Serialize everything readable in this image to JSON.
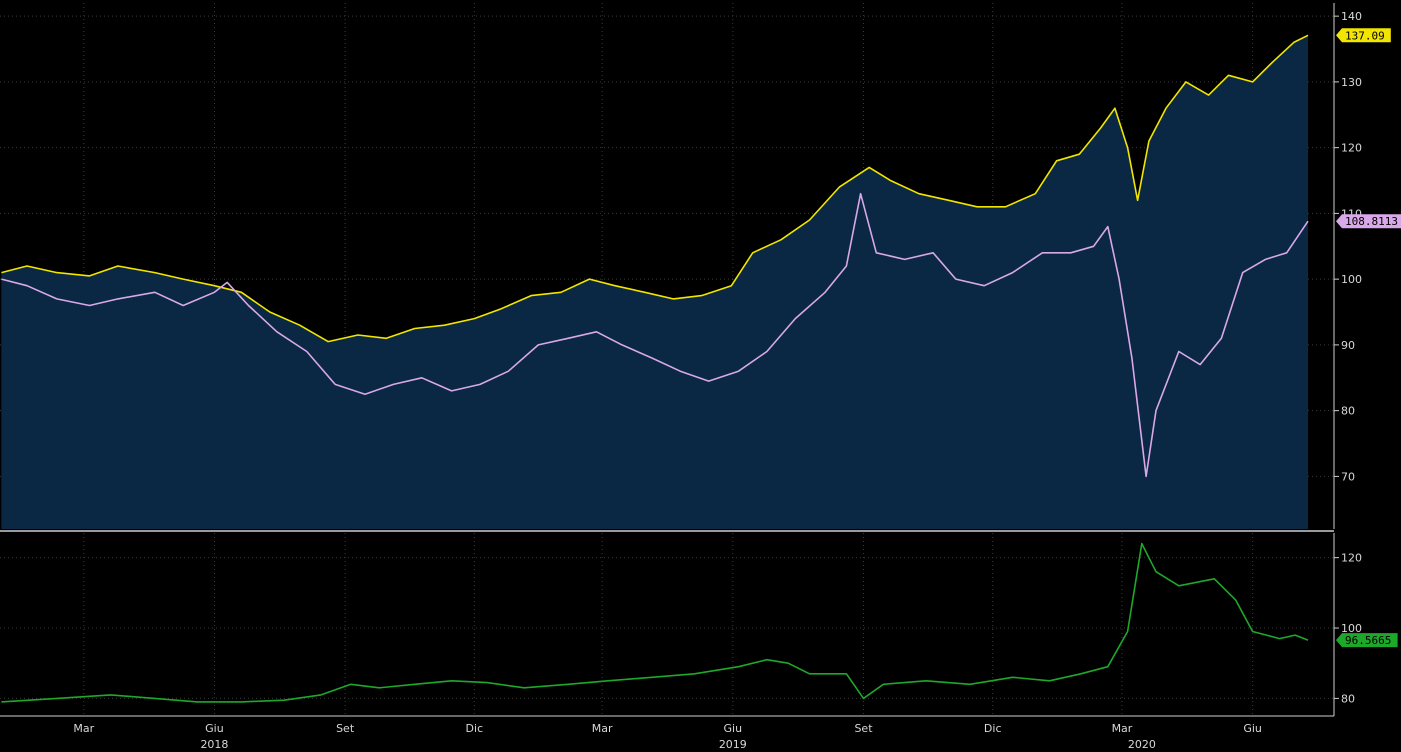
{
  "chart_data": [
    {
      "type": "area",
      "panel": "top",
      "y_axis_side": "right",
      "ylim": [
        62,
        142
      ],
      "y_ticks": [
        70,
        80,
        90,
        100,
        110,
        120,
        130,
        140
      ],
      "grid": true,
      "area_fill_color": "#0a2744",
      "series": [
        {
          "color": "#f2e600",
          "last_value_label": "137.09",
          "points": [
            [
              "2018-01-02",
              101
            ],
            [
              "2018-01-20",
              102
            ],
            [
              "2018-02-10",
              101
            ],
            [
              "2018-03-05",
              100.5
            ],
            [
              "2018-03-25",
              102
            ],
            [
              "2018-04-20",
              101
            ],
            [
              "2018-05-10",
              100
            ],
            [
              "2018-06-01",
              99
            ],
            [
              "2018-06-20",
              98
            ],
            [
              "2018-07-10",
              95
            ],
            [
              "2018-07-31",
              93
            ],
            [
              "2018-08-20",
              90.5
            ],
            [
              "2018-09-10",
              91.5
            ],
            [
              "2018-09-30",
              91
            ],
            [
              "2018-10-20",
              92.5
            ],
            [
              "2018-11-10",
              93
            ],
            [
              "2018-12-01",
              94
            ],
            [
              "2018-12-20",
              95.5
            ],
            [
              "2019-01-10",
              97.5
            ],
            [
              "2019-01-31",
              98
            ],
            [
              "2019-02-20",
              100
            ],
            [
              "2019-03-10",
              99
            ],
            [
              "2019-03-31",
              98
            ],
            [
              "2019-04-20",
              97
            ],
            [
              "2019-05-10",
              97.5
            ],
            [
              "2019-05-31",
              99
            ],
            [
              "2019-06-15",
              104
            ],
            [
              "2019-07-05",
              106
            ],
            [
              "2019-07-25",
              109
            ],
            [
              "2019-08-15",
              114
            ],
            [
              "2019-09-05",
              117
            ],
            [
              "2019-09-20",
              115
            ],
            [
              "2019-10-10",
              113
            ],
            [
              "2019-10-31",
              112
            ],
            [
              "2019-11-20",
              111
            ],
            [
              "2019-12-10",
              111
            ],
            [
              "2019-12-31",
              113
            ],
            [
              "2020-01-15",
              118
            ],
            [
              "2020-01-31",
              119
            ],
            [
              "2020-02-15",
              123
            ],
            [
              "2020-02-25",
              126
            ],
            [
              "2020-03-05",
              120
            ],
            [
              "2020-03-12",
              112
            ],
            [
              "2020-03-20",
              121
            ],
            [
              "2020-04-01",
              126
            ],
            [
              "2020-04-15",
              130
            ],
            [
              "2020-05-01",
              128
            ],
            [
              "2020-05-15",
              131
            ],
            [
              "2020-06-01",
              130
            ],
            [
              "2020-06-15",
              133
            ],
            [
              "2020-06-30",
              136
            ],
            [
              "2020-07-10",
              137.09
            ]
          ]
        },
        {
          "color": "#d9a8e8",
          "last_value_label": "108.8113",
          "points": [
            [
              "2018-01-02",
              100
            ],
            [
              "2018-01-20",
              99
            ],
            [
              "2018-02-10",
              97
            ],
            [
              "2018-03-05",
              96
            ],
            [
              "2018-03-25",
              97
            ],
            [
              "2018-04-20",
              98
            ],
            [
              "2018-05-10",
              96
            ],
            [
              "2018-06-01",
              98
            ],
            [
              "2018-06-10",
              99.5
            ],
            [
              "2018-06-25",
              96
            ],
            [
              "2018-07-15",
              92
            ],
            [
              "2018-08-05",
              89
            ],
            [
              "2018-08-25",
              84
            ],
            [
              "2018-09-15",
              82.5
            ],
            [
              "2018-10-05",
              84
            ],
            [
              "2018-10-25",
              85
            ],
            [
              "2018-11-15",
              83
            ],
            [
              "2018-12-05",
              84
            ],
            [
              "2018-12-25",
              86
            ],
            [
              "2019-01-15",
              90
            ],
            [
              "2019-02-05",
              91
            ],
            [
              "2019-02-25",
              92
            ],
            [
              "2019-03-15",
              90
            ],
            [
              "2019-04-05",
              88
            ],
            [
              "2019-04-25",
              86
            ],
            [
              "2019-05-15",
              84.5
            ],
            [
              "2019-06-05",
              86
            ],
            [
              "2019-06-25",
              89
            ],
            [
              "2019-07-15",
              94
            ],
            [
              "2019-08-05",
              98
            ],
            [
              "2019-08-20",
              102
            ],
            [
              "2019-08-30",
              113
            ],
            [
              "2019-09-10",
              104
            ],
            [
              "2019-09-30",
              103
            ],
            [
              "2019-10-20",
              104
            ],
            [
              "2019-11-05",
              100
            ],
            [
              "2019-11-25",
              99
            ],
            [
              "2019-12-15",
              101
            ],
            [
              "2020-01-05",
              104
            ],
            [
              "2020-01-25",
              104
            ],
            [
              "2020-02-10",
              105
            ],
            [
              "2020-02-20",
              108
            ],
            [
              "2020-02-28",
              100
            ],
            [
              "2020-03-08",
              88
            ],
            [
              "2020-03-18",
              70
            ],
            [
              "2020-03-25",
              80
            ],
            [
              "2020-04-10",
              89
            ],
            [
              "2020-04-25",
              87
            ],
            [
              "2020-05-10",
              91
            ],
            [
              "2020-05-25",
              101
            ],
            [
              "2020-06-10",
              103
            ],
            [
              "2020-06-25",
              104
            ],
            [
              "2020-07-10",
              108.81
            ]
          ]
        }
      ]
    },
    {
      "type": "line",
      "panel": "bottom",
      "y_axis_side": "right",
      "ylim": [
        75,
        127
      ],
      "y_ticks": [
        80,
        100,
        120
      ],
      "grid": true,
      "series": [
        {
          "color": "#1ea82a",
          "last_value_label": "96.5665",
          "points": [
            [
              "2018-01-02",
              79
            ],
            [
              "2018-02-10",
              80
            ],
            [
              "2018-03-20",
              81
            ],
            [
              "2018-04-20",
              80
            ],
            [
              "2018-05-20",
              79
            ],
            [
              "2018-06-20",
              79
            ],
            [
              "2018-07-20",
              79.5
            ],
            [
              "2018-08-15",
              81
            ],
            [
              "2018-09-05",
              84
            ],
            [
              "2018-09-25",
              83
            ],
            [
              "2018-10-20",
              84
            ],
            [
              "2018-11-15",
              85
            ],
            [
              "2018-12-10",
              84.5
            ],
            [
              "2019-01-05",
              83
            ],
            [
              "2019-02-05",
              84
            ],
            [
              "2019-03-05",
              85
            ],
            [
              "2019-04-05",
              86
            ],
            [
              "2019-05-05",
              87
            ],
            [
              "2019-06-05",
              89
            ],
            [
              "2019-06-25",
              91
            ],
            [
              "2019-07-10",
              90
            ],
            [
              "2019-07-25",
              87
            ],
            [
              "2019-08-20",
              87
            ],
            [
              "2019-09-01",
              80
            ],
            [
              "2019-09-15",
              84
            ],
            [
              "2019-10-15",
              85
            ],
            [
              "2019-11-15",
              84
            ],
            [
              "2019-12-15",
              86
            ],
            [
              "2020-01-10",
              85
            ],
            [
              "2020-02-01",
              87
            ],
            [
              "2020-02-20",
              89
            ],
            [
              "2020-03-05",
              99
            ],
            [
              "2020-03-15",
              124
            ],
            [
              "2020-03-25",
              116
            ],
            [
              "2020-04-10",
              112
            ],
            [
              "2020-05-05",
              114
            ],
            [
              "2020-05-20",
              108
            ],
            [
              "2020-06-01",
              99
            ],
            [
              "2020-06-20",
              97
            ],
            [
              "2020-07-01",
              98
            ],
            [
              "2020-07-10",
              96.5665
            ]
          ]
        }
      ]
    }
  ],
  "x_axis": {
    "start": "2018-01-01",
    "end": "2020-07-10",
    "month_ticks": [
      {
        "label": "Mar",
        "date": "2018-03-01"
      },
      {
        "label": "Giu",
        "date": "2018-06-01"
      },
      {
        "label": "Set",
        "date": "2018-09-01"
      },
      {
        "label": "Dic",
        "date": "2018-12-01"
      },
      {
        "label": "Mar",
        "date": "2019-03-01"
      },
      {
        "label": "Giu",
        "date": "2019-06-01"
      },
      {
        "label": "Set",
        "date": "2019-09-01"
      },
      {
        "label": "Dic",
        "date": "2019-12-01"
      },
      {
        "label": "Mar",
        "date": "2020-03-01"
      },
      {
        "label": "Giu",
        "date": "2020-06-01"
      }
    ],
    "year_labels": [
      {
        "label": "2018",
        "date": "2018-06-01"
      },
      {
        "label": "2019",
        "date": "2019-06-01"
      },
      {
        "label": "2020",
        "date": "2020-03-15"
      }
    ]
  },
  "colors": {
    "background": "#000000",
    "grid": "#3a3a3a",
    "axis": "#cfcfcf",
    "tick_text": "#d8d8d8"
  }
}
